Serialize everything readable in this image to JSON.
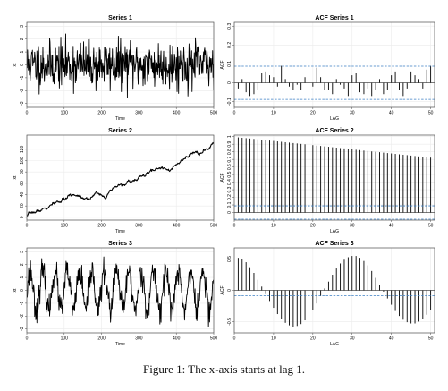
{
  "caption": "Figure 1: The x-axis starts at lag 1.",
  "colors": {
    "line": "#000000",
    "grid": "#ebebeb",
    "border": "#4d4d4d",
    "ci": "#3b7fc4",
    "background": "#ffffff"
  },
  "chart_data": [
    {
      "id": "series1",
      "type": "line",
      "title": "Series 1",
      "xlabel": "Time",
      "ylabel": "xt",
      "xlim": [
        0,
        500
      ],
      "ylim": [
        -3.3,
        3.3
      ],
      "xticks": [
        0,
        100,
        200,
        300,
        400,
        500
      ],
      "yticks": [
        -3,
        -2,
        -1,
        0,
        1,
        2,
        3
      ],
      "grid": true,
      "kind": "noise",
      "amplitude": 2.0,
      "n": 500,
      "seed": 11
    },
    {
      "id": "acf1",
      "type": "bar",
      "title": "ACF Series 1",
      "xlabel": "LAG",
      "ylabel": "ACF",
      "xlim": [
        0,
        51
      ],
      "ylim": [
        -0.13,
        0.32
      ],
      "xticks": [
        0,
        10,
        20,
        30,
        40,
        50
      ],
      "yticks": [
        -0.1,
        0.0,
        0.1,
        0.2,
        0.3
      ],
      "grid": true,
      "ci": 0.088,
      "lags": [
        1,
        2,
        3,
        4,
        5,
        6,
        7,
        8,
        9,
        10,
        11,
        12,
        13,
        14,
        15,
        16,
        17,
        18,
        19,
        20,
        21,
        22,
        23,
        24,
        25,
        26,
        27,
        28,
        29,
        30,
        31,
        32,
        33,
        34,
        35,
        36,
        37,
        38,
        39,
        40,
        41,
        42,
        43,
        44,
        45,
        46,
        47,
        48,
        49,
        50
      ],
      "values": [
        -0.03,
        0.02,
        -0.05,
        -0.07,
        -0.06,
        -0.04,
        0.05,
        0.06,
        0.04,
        0.03,
        -0.02,
        0.09,
        0.02,
        -0.02,
        -0.04,
        -0.01,
        -0.04,
        0.03,
        0.02,
        -0.02,
        0.08,
        0.03,
        -0.04,
        -0.04,
        -0.06,
        0.02,
        -0.01,
        -0.03,
        -0.07,
        0.04,
        0.05,
        -0.05,
        -0.06,
        -0.03,
        -0.07,
        -0.04,
        0.02,
        -0.06,
        -0.04,
        0.04,
        0.06,
        -0.04,
        -0.07,
        -0.03,
        0.06,
        0.04,
        0.02,
        -0.03,
        0.07,
        0.09
      ]
    },
    {
      "id": "series2",
      "type": "line",
      "title": "Series 2",
      "xlabel": "Time",
      "ylabel": "xt",
      "xlim": [
        0,
        500
      ],
      "ylim": [
        -5,
        145
      ],
      "xticks": [
        0,
        100,
        200,
        300,
        400,
        500
      ],
      "yticks": [
        0,
        20,
        40,
        60,
        80,
        100,
        120
      ],
      "grid": true,
      "kind": "walk",
      "end": 130,
      "n": 500,
      "seed": 7
    },
    {
      "id": "acf2",
      "type": "bar",
      "title": "ACF Series 2",
      "xlabel": "LAG",
      "ylabel": "ACF",
      "xlim": [
        0,
        51
      ],
      "ylim": [
        -0.1,
        1.02
      ],
      "xticks": [
        0,
        10,
        20,
        30,
        40,
        50
      ],
      "yticks": [
        0.0,
        0.1,
        0.2,
        0.3,
        0.4,
        0.5,
        0.6,
        0.7,
        0.8,
        0.9,
        1.0
      ],
      "grid": true,
      "ci": 0.088,
      "lags": [
        1,
        2,
        3,
        4,
        5,
        6,
        7,
        8,
        9,
        10,
        11,
        12,
        13,
        14,
        15,
        16,
        17,
        18,
        19,
        20,
        21,
        22,
        23,
        24,
        25,
        26,
        27,
        28,
        29,
        30,
        31,
        32,
        33,
        34,
        35,
        36,
        37,
        38,
        39,
        40,
        41,
        42,
        43,
        44,
        45,
        46,
        47,
        48,
        49,
        50
      ],
      "values": [
        0.99,
        0.985,
        0.98,
        0.975,
        0.97,
        0.965,
        0.959,
        0.954,
        0.948,
        0.943,
        0.937,
        0.932,
        0.926,
        0.921,
        0.915,
        0.91,
        0.904,
        0.899,
        0.893,
        0.888,
        0.882,
        0.877,
        0.871,
        0.866,
        0.86,
        0.855,
        0.849,
        0.844,
        0.838,
        0.833,
        0.827,
        0.822,
        0.816,
        0.811,
        0.805,
        0.8,
        0.794,
        0.789,
        0.783,
        0.778,
        0.772,
        0.767,
        0.761,
        0.756,
        0.75,
        0.745,
        0.739,
        0.734,
        0.728,
        0.723
      ]
    },
    {
      "id": "series3",
      "type": "line",
      "title": "Series 3",
      "xlabel": "Time",
      "ylabel": "xt",
      "xlim": [
        0,
        500
      ],
      "ylim": [
        -3.3,
        3.3
      ],
      "xticks": [
        0,
        100,
        200,
        300,
        400,
        500
      ],
      "yticks": [
        -3,
        -2,
        -1,
        0,
        1,
        2,
        3
      ],
      "grid": true,
      "kind": "seasonal",
      "amplitude": 1.5,
      "period": 33,
      "noise": 0.5,
      "n": 500,
      "seed": 23
    },
    {
      "id": "acf3",
      "type": "bar",
      "title": "ACF Series 3",
      "xlabel": "LAG",
      "ylabel": "ACF",
      "xlim": [
        0,
        51
      ],
      "ylim": [
        -0.68,
        0.68
      ],
      "xticks": [
        0,
        10,
        20,
        30,
        40,
        50
      ],
      "yticks": [
        -0.5,
        0.0,
        0.5
      ],
      "grid": true,
      "ci": 0.088,
      "lags": [
        1,
        2,
        3,
        4,
        5,
        6,
        7,
        8,
        9,
        10,
        11,
        12,
        13,
        14,
        15,
        16,
        17,
        18,
        19,
        20,
        21,
        22,
        23,
        24,
        25,
        26,
        27,
        28,
        29,
        30,
        31,
        32,
        33,
        34,
        35,
        36,
        37,
        38,
        39,
        40,
        41,
        42,
        43,
        44,
        45,
        46,
        47,
        48,
        49,
        50
      ],
      "values": [
        0.52,
        0.5,
        0.45,
        0.37,
        0.28,
        0.17,
        0.06,
        -0.06,
        -0.17,
        -0.28,
        -0.38,
        -0.46,
        -0.52,
        -0.56,
        -0.58,
        -0.57,
        -0.54,
        -0.48,
        -0.41,
        -0.31,
        -0.21,
        -0.09,
        0.03,
        0.14,
        0.25,
        0.35,
        0.43,
        0.49,
        0.53,
        0.55,
        0.55,
        0.52,
        0.47,
        0.4,
        0.31,
        0.2,
        0.09,
        -0.02,
        -0.13,
        -0.23,
        -0.33,
        -0.41,
        -0.47,
        -0.51,
        -0.53,
        -0.53,
        -0.5,
        -0.46,
        -0.39,
        -0.31
      ]
    }
  ]
}
